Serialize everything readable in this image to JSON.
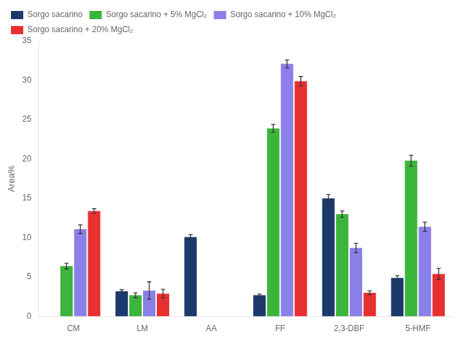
{
  "chart_data": {
    "type": "bar",
    "ylabel": "Area%",
    "categories": [
      "CM",
      "LM",
      "AA",
      "FF",
      "2,3-DBF",
      "5-HMF"
    ],
    "series": [
      {
        "name": "Sorgo sacarino",
        "color": "#1b3a6b",
        "values": [
          0.0,
          3.2,
          10.1,
          2.7,
          15.0,
          4.9
        ],
        "errors": [
          0.0,
          0.2,
          0.3,
          0.15,
          0.5,
          0.3
        ]
      },
      {
        "name": "Sorgo sacarino + 5% MgCl₂",
        "color": "#3bb53b",
        "values": [
          6.4,
          2.7,
          0.0,
          23.9,
          13.0,
          19.8
        ],
        "errors": [
          0.35,
          0.3,
          0.0,
          0.5,
          0.4,
          0.7
        ]
      },
      {
        "name": "Sorgo sacarino + 10% MgCl₂",
        "color": "#8b7fe8",
        "values": [
          11.1,
          3.3,
          0.0,
          32.1,
          8.7,
          11.4
        ],
        "errors": [
          0.55,
          1.1,
          0.0,
          0.5,
          0.6,
          0.6
        ]
      },
      {
        "name": "Sorgo sacarino + 20% MgCl₂",
        "color": "#e83030",
        "values": [
          13.4,
          2.9,
          0.0,
          29.9,
          3.0,
          5.4
        ],
        "errors": [
          0.3,
          0.55,
          0.0,
          0.6,
          0.25,
          0.7
        ]
      }
    ],
    "ylim": [
      0,
      35
    ],
    "yticks": [
      0,
      5,
      10,
      15,
      20,
      25,
      30,
      35
    ],
    "grid": false,
    "legend": "upper left"
  }
}
